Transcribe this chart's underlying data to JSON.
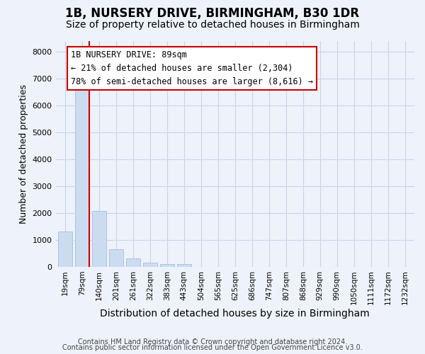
{
  "title": "1B, NURSERY DRIVE, BIRMINGHAM, B30 1DR",
  "subtitle": "Size of property relative to detached houses in Birmingham",
  "xlabel": "Distribution of detached houses by size in Birmingham",
  "ylabel": "Number of detached properties",
  "bar_labels": [
    "19sqm",
    "79sqm",
    "140sqm",
    "201sqm",
    "261sqm",
    "322sqm",
    "383sqm",
    "443sqm",
    "504sqm",
    "565sqm",
    "625sqm",
    "686sqm",
    "747sqm",
    "807sqm",
    "868sqm",
    "929sqm",
    "990sqm",
    "1050sqm",
    "1111sqm",
    "1172sqm",
    "1232sqm"
  ],
  "bar_values": [
    1300,
    6600,
    2075,
    650,
    300,
    150,
    90,
    90,
    0,
    0,
    0,
    0,
    0,
    0,
    0,
    0,
    0,
    0,
    0,
    0,
    0
  ],
  "bar_color": "#ccdcf0",
  "bar_edge_color": "#aac4e0",
  "vline_color": "#cc0000",
  "annotation_box_text": "1B NURSERY DRIVE: 89sqm\n← 21% of detached houses are smaller (2,304)\n78% of semi-detached houses are larger (8,616) →",
  "ylim": [
    0,
    8400
  ],
  "yticks": [
    0,
    1000,
    2000,
    3000,
    4000,
    5000,
    6000,
    7000,
    8000
  ],
  "grid_color": "#c8d4e8",
  "background_color": "#eef2fa",
  "footer_line1": "Contains HM Land Registry data © Crown copyright and database right 2024.",
  "footer_line2": "Contains public sector information licensed under the Open Government Licence v3.0.",
  "title_fontsize": 12,
  "subtitle_fontsize": 10,
  "xlabel_fontsize": 10,
  "ylabel_fontsize": 9,
  "annotation_fontsize": 8.5,
  "footer_fontsize": 7
}
